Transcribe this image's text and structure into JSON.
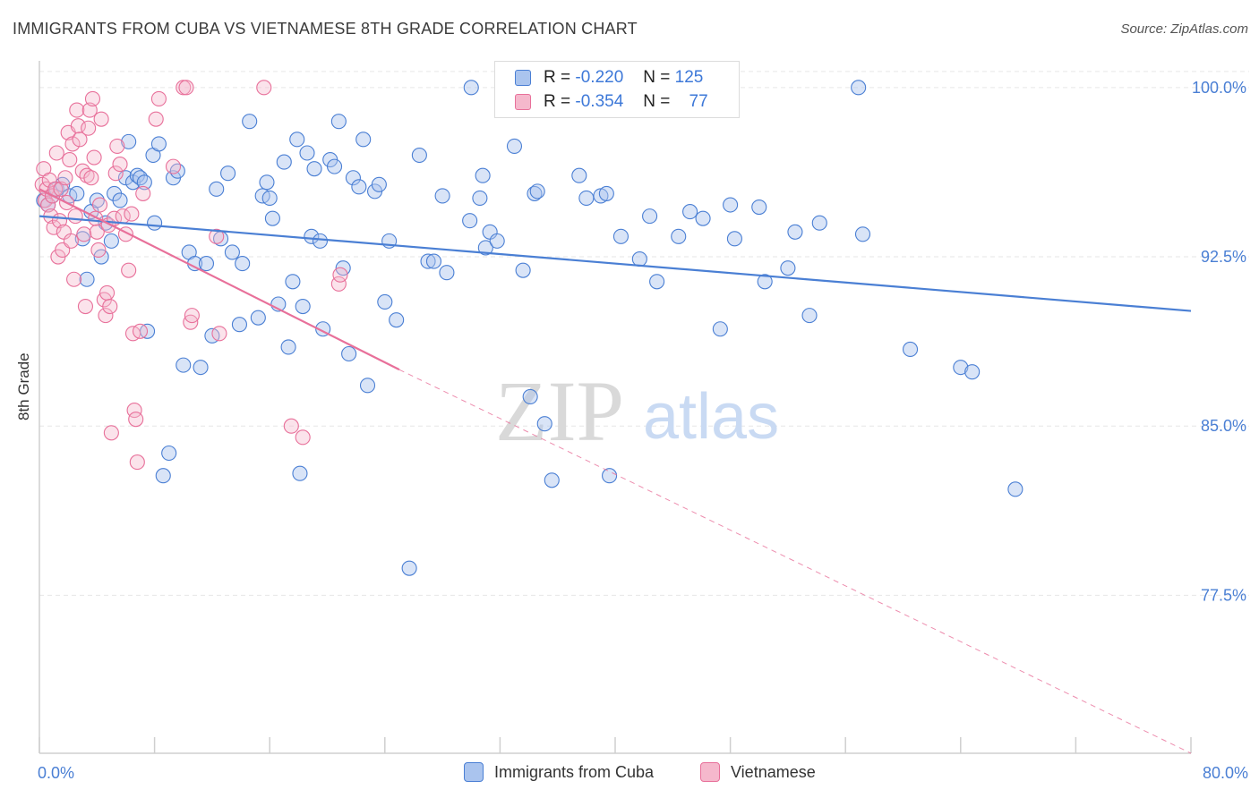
{
  "title": "IMMIGRANTS FROM CUBA VS VIETNAMESE 8TH GRADE CORRELATION CHART",
  "source": "Source: ZipAtlas.com",
  "watermark": {
    "zip": "ZIP",
    "atlas": "atlas"
  },
  "colors": {
    "blue": "#4a7fd4",
    "blue_fill": "#aac4ee",
    "pink": "#e8709a",
    "pink_fill": "#f5b8cc",
    "grid": "#e6e6e6"
  },
  "legend": {
    "r_label": "R =",
    "n_label": "N =",
    "rows": [
      {
        "r": "-0.220",
        "n": "125"
      },
      {
        "r": "-0.354",
        "n": "77"
      }
    ]
  },
  "bottom_legend": [
    "Immigrants from Cuba",
    "Vietnamese"
  ],
  "chart_data": {
    "type": "scatter",
    "title": "IMMIGRANTS FROM CUBA VS VIETNAMESE 8TH GRADE CORRELATION CHART",
    "xlabel": "",
    "ylabel": "8th Grade",
    "xlim": [
      0,
      80
    ],
    "ylim": [
      70.5,
      101.5
    ],
    "x_tick_labels": [
      "0.0%",
      "80.0%"
    ],
    "y_ticks": [
      77.5,
      85.0,
      92.5,
      100.0
    ],
    "y_tick_labels": [
      "77.5%",
      "85.0%",
      "92.5%",
      "100.0%"
    ],
    "grid": true,
    "legend_position": "top-center",
    "series": [
      {
        "name": "Immigrants from Cuba",
        "color": "#4a7fd4",
        "trend": {
          "x": [
            0,
            80
          ],
          "y": [
            94.3,
            90.1
          ]
        },
        "points": [
          [
            0.3,
            95.0
          ],
          [
            0.6,
            94.8
          ],
          [
            0.9,
            95.2
          ],
          [
            1.2,
            95.5
          ],
          [
            1.6,
            95.7
          ],
          [
            2.1,
            95.2
          ],
          [
            2.6,
            95.3
          ],
          [
            3.0,
            93.3
          ],
          [
            3.3,
            91.5
          ],
          [
            3.6,
            94.5
          ],
          [
            4.0,
            95.0
          ],
          [
            4.3,
            92.5
          ],
          [
            4.6,
            94.0
          ],
          [
            5.0,
            93.2
          ],
          [
            5.2,
            95.3
          ],
          [
            5.6,
            95.0
          ],
          [
            6.0,
            96.0
          ],
          [
            6.2,
            97.6
          ],
          [
            6.5,
            95.8
          ],
          [
            6.8,
            96.1
          ],
          [
            7.0,
            96.0
          ],
          [
            7.3,
            95.8
          ],
          [
            7.5,
            89.2
          ],
          [
            7.9,
            97.0
          ],
          [
            8.0,
            94.0
          ],
          [
            8.3,
            97.5
          ],
          [
            8.6,
            82.8
          ],
          [
            9.0,
            83.8
          ],
          [
            9.3,
            96.0
          ],
          [
            9.6,
            96.3
          ],
          [
            10.0,
            87.7
          ],
          [
            10.4,
            92.7
          ],
          [
            10.8,
            92.2
          ],
          [
            11.2,
            87.6
          ],
          [
            11.6,
            92.2
          ],
          [
            12.0,
            89.0
          ],
          [
            12.3,
            95.5
          ],
          [
            12.6,
            93.3
          ],
          [
            13.1,
            96.2
          ],
          [
            13.4,
            92.7
          ],
          [
            13.9,
            89.5
          ],
          [
            14.1,
            92.2
          ],
          [
            14.6,
            98.5
          ],
          [
            15.2,
            89.8
          ],
          [
            15.5,
            95.2
          ],
          [
            15.8,
            95.8
          ],
          [
            16.0,
            95.1
          ],
          [
            16.2,
            94.2
          ],
          [
            16.6,
            90.4
          ],
          [
            17.0,
            96.7
          ],
          [
            17.3,
            88.5
          ],
          [
            17.6,
            91.4
          ],
          [
            17.9,
            97.7
          ],
          [
            18.1,
            82.9
          ],
          [
            18.3,
            90.3
          ],
          [
            18.6,
            97.1
          ],
          [
            18.9,
            93.4
          ],
          [
            19.1,
            96.4
          ],
          [
            19.5,
            93.2
          ],
          [
            19.7,
            89.3
          ],
          [
            20.2,
            96.8
          ],
          [
            20.5,
            96.5
          ],
          [
            20.8,
            98.5
          ],
          [
            21.1,
            92.0
          ],
          [
            21.5,
            88.2
          ],
          [
            21.8,
            96.0
          ],
          [
            22.2,
            95.6
          ],
          [
            22.5,
            97.7
          ],
          [
            22.8,
            86.8
          ],
          [
            23.3,
            95.4
          ],
          [
            23.6,
            95.7
          ],
          [
            24.0,
            90.5
          ],
          [
            24.3,
            93.2
          ],
          [
            24.8,
            89.7
          ],
          [
            25.7,
            78.7
          ],
          [
            26.4,
            97.0
          ],
          [
            27.0,
            92.3
          ],
          [
            27.4,
            92.3
          ],
          [
            28.0,
            95.2
          ],
          [
            28.3,
            91.8
          ],
          [
            29.9,
            94.1
          ],
          [
            30.0,
            100.0
          ],
          [
            30.6,
            95.1
          ],
          [
            30.8,
            96.1
          ],
          [
            31.0,
            92.9
          ],
          [
            31.3,
            93.6
          ],
          [
            31.8,
            93.2
          ],
          [
            33.0,
            97.4
          ],
          [
            33.6,
            91.9
          ],
          [
            34.1,
            86.3
          ],
          [
            34.4,
            95.3
          ],
          [
            34.6,
            95.4
          ],
          [
            35.1,
            85.1
          ],
          [
            35.6,
            82.6
          ],
          [
            37.5,
            96.1
          ],
          [
            38.0,
            95.1
          ],
          [
            39.0,
            95.2
          ],
          [
            39.4,
            95.3
          ],
          [
            39.6,
            82.8
          ],
          [
            40.4,
            93.4
          ],
          [
            41.7,
            92.4
          ],
          [
            42.4,
            94.3
          ],
          [
            42.9,
            91.4
          ],
          [
            44.4,
            93.4
          ],
          [
            45.2,
            94.5
          ],
          [
            46.1,
            94.2
          ],
          [
            47.3,
            89.3
          ],
          [
            48.0,
            94.8
          ],
          [
            48.3,
            93.3
          ],
          [
            50.0,
            94.7
          ],
          [
            50.4,
            91.4
          ],
          [
            52.0,
            92.0
          ],
          [
            52.5,
            93.6
          ],
          [
            53.5,
            89.9
          ],
          [
            54.2,
            94.0
          ],
          [
            56.9,
            100.0
          ],
          [
            57.2,
            93.5
          ],
          [
            60.5,
            88.4
          ],
          [
            64.0,
            87.6
          ],
          [
            64.8,
            87.4
          ],
          [
            67.8,
            82.2
          ]
        ]
      },
      {
        "name": "Vietnamese",
        "color": "#e8709a",
        "trend": {
          "x": [
            0,
            25
          ],
          "y": [
            95.5,
            87.5
          ],
          "dashed_to": {
            "x": 80,
            "y": 70.5
          }
        },
        "points": [
          [
            0.2,
            95.7
          ],
          [
            0.3,
            96.4
          ],
          [
            0.4,
            95.0
          ],
          [
            0.5,
            95.5
          ],
          [
            0.6,
            94.8
          ],
          [
            0.7,
            95.9
          ],
          [
            0.8,
            94.3
          ],
          [
            0.9,
            95.2
          ],
          [
            1.0,
            93.8
          ],
          [
            1.1,
            95.5
          ],
          [
            1.2,
            97.1
          ],
          [
            1.3,
            92.5
          ],
          [
            1.4,
            94.1
          ],
          [
            1.5,
            95.5
          ],
          [
            1.6,
            92.8
          ],
          [
            1.7,
            93.6
          ],
          [
            1.8,
            96.0
          ],
          [
            1.9,
            94.9
          ],
          [
            2.0,
            98.0
          ],
          [
            2.1,
            96.8
          ],
          [
            2.2,
            93.2
          ],
          [
            2.3,
            97.5
          ],
          [
            2.4,
            91.5
          ],
          [
            2.5,
            94.3
          ],
          [
            2.6,
            99.0
          ],
          [
            2.7,
            98.3
          ],
          [
            2.8,
            97.7
          ],
          [
            3.0,
            96.3
          ],
          [
            3.1,
            93.5
          ],
          [
            3.2,
            90.3
          ],
          [
            3.3,
            96.1
          ],
          [
            3.4,
            98.2
          ],
          [
            3.5,
            99.0
          ],
          [
            3.6,
            96.0
          ],
          [
            3.7,
            99.5
          ],
          [
            3.8,
            96.9
          ],
          [
            3.9,
            94.2
          ],
          [
            4.0,
            93.6
          ],
          [
            4.1,
            92.8
          ],
          [
            4.2,
            94.8
          ],
          [
            4.3,
            98.6
          ],
          [
            4.5,
            90.6
          ],
          [
            4.6,
            89.9
          ],
          [
            4.7,
            90.9
          ],
          [
            4.8,
            93.9
          ],
          [
            4.9,
            90.3
          ],
          [
            5.0,
            84.7
          ],
          [
            5.2,
            94.2
          ],
          [
            5.3,
            96.2
          ],
          [
            5.4,
            97.4
          ],
          [
            5.6,
            96.6
          ],
          [
            5.8,
            94.3
          ],
          [
            6.0,
            93.5
          ],
          [
            6.2,
            91.9
          ],
          [
            6.4,
            94.4
          ],
          [
            6.5,
            89.1
          ],
          [
            6.6,
            85.7
          ],
          [
            6.7,
            85.3
          ],
          [
            6.8,
            83.4
          ],
          [
            7.0,
            89.2
          ],
          [
            7.2,
            95.3
          ],
          [
            8.1,
            98.6
          ],
          [
            8.3,
            99.5
          ],
          [
            9.3,
            96.5
          ],
          [
            10.0,
            100.0
          ],
          [
            10.2,
            100.0
          ],
          [
            10.5,
            89.6
          ],
          [
            10.6,
            89.9
          ],
          [
            12.3,
            93.4
          ],
          [
            12.5,
            89.1
          ],
          [
            15.6,
            100.0
          ],
          [
            17.5,
            85.0
          ],
          [
            18.3,
            84.5
          ],
          [
            20.8,
            91.3
          ],
          [
            20.9,
            91.7
          ]
        ]
      }
    ]
  }
}
